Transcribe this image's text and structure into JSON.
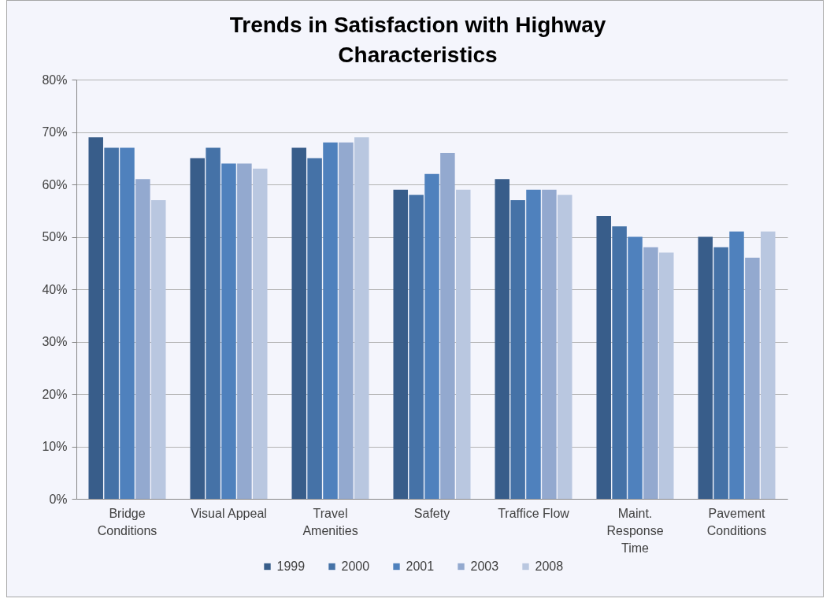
{
  "chart_data": {
    "type": "bar",
    "title": "Trends in Satisfaction with Highway Characteristics",
    "categories": [
      "Bridge Conditions",
      "Visual Appeal",
      "Travel Amenities",
      "Safety",
      "Traffice Flow",
      "Maint. Response Time",
      "Pavement Conditions"
    ],
    "series": [
      {
        "name": "1999",
        "color": "#385d8a",
        "values": [
          69,
          65,
          67,
          59,
          61,
          54,
          50
        ]
      },
      {
        "name": "2000",
        "color": "#4572a7",
        "values": [
          67,
          67,
          65,
          58,
          57,
          52,
          48
        ]
      },
      {
        "name": "2001",
        "color": "#4f81bd",
        "values": [
          67,
          64,
          68,
          62,
          59,
          50,
          51
        ]
      },
      {
        "name": "2003",
        "color": "#93a9cf",
        "values": [
          61,
          64,
          68,
          66,
          59,
          48,
          46
        ]
      },
      {
        "name": "2008",
        "color": "#b9c7e0",
        "values": [
          57,
          63,
          69,
          59,
          58,
          47,
          51
        ]
      }
    ],
    "ylim": [
      0,
      80
    ],
    "yticks": [
      {
        "value": 0,
        "label": "0%"
      },
      {
        "value": 10,
        "label": "10%"
      },
      {
        "value": 20,
        "label": "20%"
      },
      {
        "value": 30,
        "label": "30%"
      },
      {
        "value": 40,
        "label": "40%"
      },
      {
        "value": 50,
        "label": "50%"
      },
      {
        "value": 60,
        "label": "60%"
      },
      {
        "value": 70,
        "label": "70%"
      },
      {
        "value": 80,
        "label": "80%"
      }
    ],
    "grid": "y",
    "legend": "bottom"
  }
}
